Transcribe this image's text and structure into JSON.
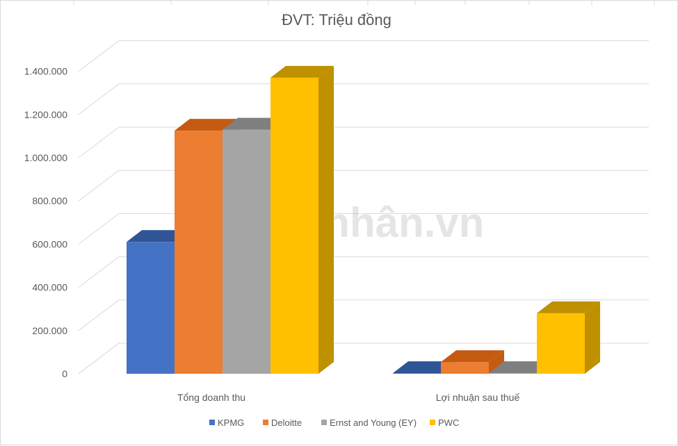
{
  "chart_data": {
    "type": "bar",
    "title": "ĐVT: Triệu đồng",
    "categories": [
      "Tổng doanh thu",
      "Lợi nhuận sau thuế"
    ],
    "series": [
      {
        "name": "KPMG",
        "values": [
          610000,
          3000
        ],
        "color": "#4472C4",
        "top": "#2F5597",
        "side": "#2F5597"
      },
      {
        "name": "Deloitte",
        "values": [
          1125000,
          54000
        ],
        "color": "#ED7D31",
        "top": "#C55A11",
        "side": "#C55A11"
      },
      {
        "name": "Ernst and Young (EY)",
        "values": [
          1130000,
          3000
        ],
        "color": "#A5A5A5",
        "top": "#7F7F7F",
        "side": "#7F7F7F"
      },
      {
        "name": "PWC",
        "values": [
          1370000,
          280000
        ],
        "color": "#FFC000",
        "top": "#BF9000",
        "side": "#BF9000"
      }
    ],
    "yticks": [
      "0",
      "200.000",
      "400.000",
      "600.000",
      "800.000",
      "1.000.000",
      "1.200.000",
      "1.400.000"
    ],
    "ylim": [
      0,
      1400000
    ],
    "grid": true,
    "legend_position": "bottom"
  },
  "watermark": "Doanhnhân.vn"
}
